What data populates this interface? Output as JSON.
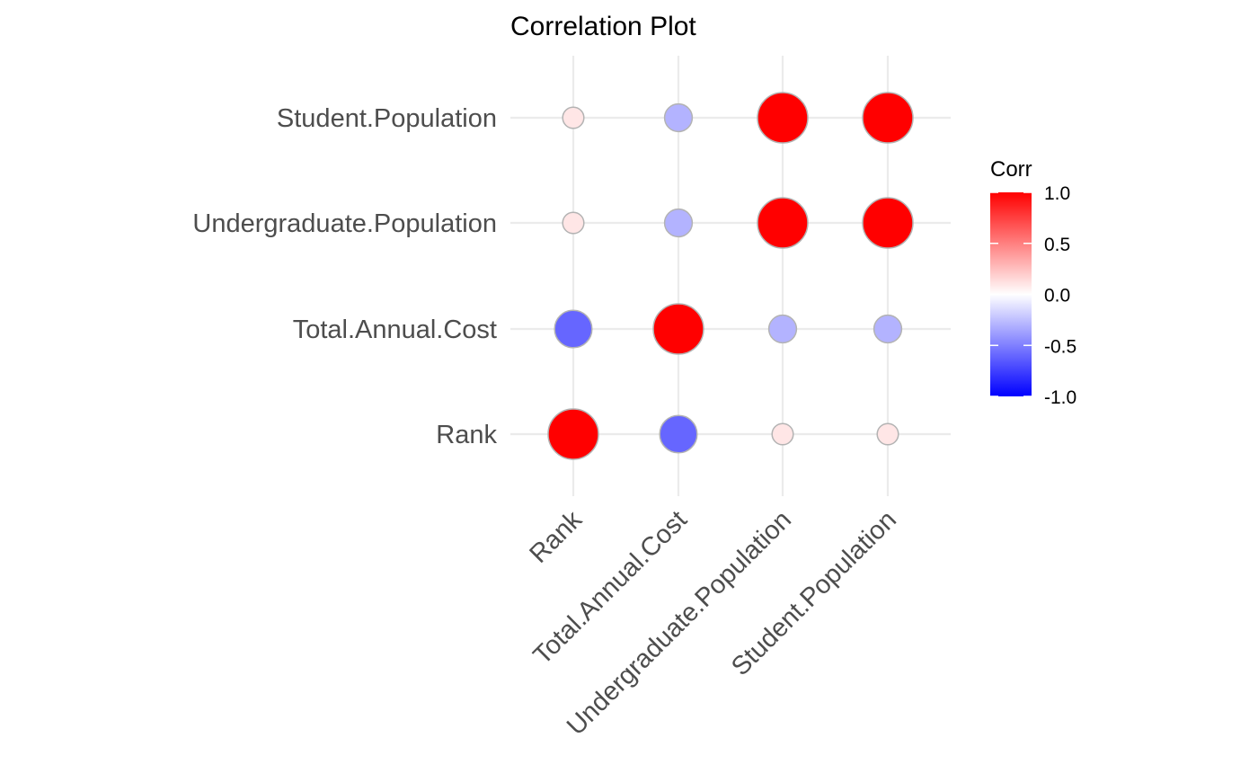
{
  "chart_data": {
    "type": "scatter",
    "subtype": "correlation-matrix-circles",
    "title": "Correlation Plot",
    "x_categories": [
      "Rank",
      "Total.Annual.Cost",
      "Undergraduate.Population",
      "Student.Population"
    ],
    "y_categories": [
      "Rank",
      "Total.Annual.Cost",
      "Undergraduate.Population",
      "Student.Population"
    ],
    "matrix": [
      [
        1.0,
        -0.6,
        0.1,
        0.1
      ],
      [
        -0.6,
        1.0,
        -0.3,
        -0.3
      ],
      [
        0.1,
        -0.3,
        1.0,
        1.0
      ],
      [
        0.1,
        -0.3,
        1.0,
        1.0
      ]
    ],
    "legend": {
      "title": "Corr",
      "ticks": [
        "1.0",
        "0.5",
        "0.0",
        "-0.5",
        "-1.0"
      ],
      "tick_values": [
        1.0,
        0.5,
        0.0,
        -0.5,
        -1.0
      ],
      "range": [
        -1.0,
        1.0
      ],
      "placement": "right",
      "colors": {
        "low": "#0000ff",
        "mid": "#ffffff",
        "high": "#ff0000"
      }
    },
    "grid": true,
    "colors": {
      "grid": "#ebebeb",
      "circle_outline": "#b3b3b3",
      "text": "#4d4d4d"
    }
  }
}
